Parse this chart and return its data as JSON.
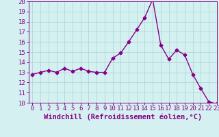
{
  "x": [
    0,
    1,
    2,
    3,
    4,
    5,
    6,
    7,
    8,
    9,
    10,
    11,
    12,
    13,
    14,
    15,
    16,
    17,
    18,
    19,
    20,
    21,
    22,
    23
  ],
  "y": [
    12.8,
    13.0,
    13.2,
    13.0,
    13.4,
    13.1,
    13.4,
    13.1,
    13.0,
    13.0,
    14.4,
    14.9,
    16.0,
    17.2,
    18.4,
    20.2,
    15.7,
    14.3,
    15.2,
    14.7,
    12.8,
    11.4,
    10.1,
    9.9
  ],
  "line_color": "#880088",
  "marker": "D",
  "marker_size": 2.5,
  "line_width": 1.0,
  "xlabel": "Windchill (Refroidissement éolien,°C)",
  "ylim": [
    10,
    20
  ],
  "xlim": [
    -0.5,
    23
  ],
  "yticks": [
    10,
    11,
    12,
    13,
    14,
    15,
    16,
    17,
    18,
    19,
    20
  ],
  "xticks": [
    0,
    1,
    2,
    3,
    4,
    5,
    6,
    7,
    8,
    9,
    10,
    11,
    12,
    13,
    14,
    15,
    16,
    17,
    18,
    19,
    20,
    21,
    22,
    23
  ],
  "background_color": "#d4f0f0",
  "grid_color": "#b0d8d8",
  "tick_color": "#880088",
  "label_color": "#880088",
  "font_size": 6.5,
  "xlabel_fontsize": 7.5
}
